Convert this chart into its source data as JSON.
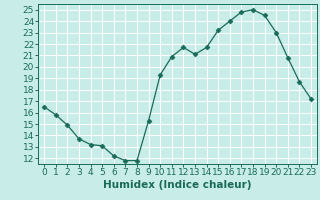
{
  "x": [
    0,
    1,
    2,
    3,
    4,
    5,
    6,
    7,
    8,
    9,
    10,
    11,
    12,
    13,
    14,
    15,
    16,
    17,
    18,
    19,
    20,
    21,
    22,
    23
  ],
  "y": [
    16.5,
    15.8,
    14.9,
    13.7,
    13.2,
    13.1,
    12.2,
    11.8,
    11.8,
    15.3,
    19.3,
    20.9,
    21.7,
    21.1,
    21.7,
    23.2,
    24.0,
    24.8,
    25.0,
    24.5,
    23.0,
    20.8,
    18.7,
    17.2
  ],
  "xlabel": "Humidex (Indice chaleur)",
  "xlim": [
    -0.5,
    23.5
  ],
  "ylim": [
    11.5,
    25.5
  ],
  "yticks": [
    12,
    13,
    14,
    15,
    16,
    17,
    18,
    19,
    20,
    21,
    22,
    23,
    24,
    25
  ],
  "xticks": [
    0,
    1,
    2,
    3,
    4,
    5,
    6,
    7,
    8,
    9,
    10,
    11,
    12,
    13,
    14,
    15,
    16,
    17,
    18,
    19,
    20,
    21,
    22,
    23
  ],
  "line_color": "#1a6b5a",
  "marker": "D",
  "marker_size": 2.5,
  "bg_color": "#c8ece8",
  "grid_color": "#ffffff",
  "tick_label_color": "#1a6b5a",
  "xlabel_color": "#1a6b5a",
  "label_fontsize": 7.5,
  "tick_fontsize": 6.5
}
